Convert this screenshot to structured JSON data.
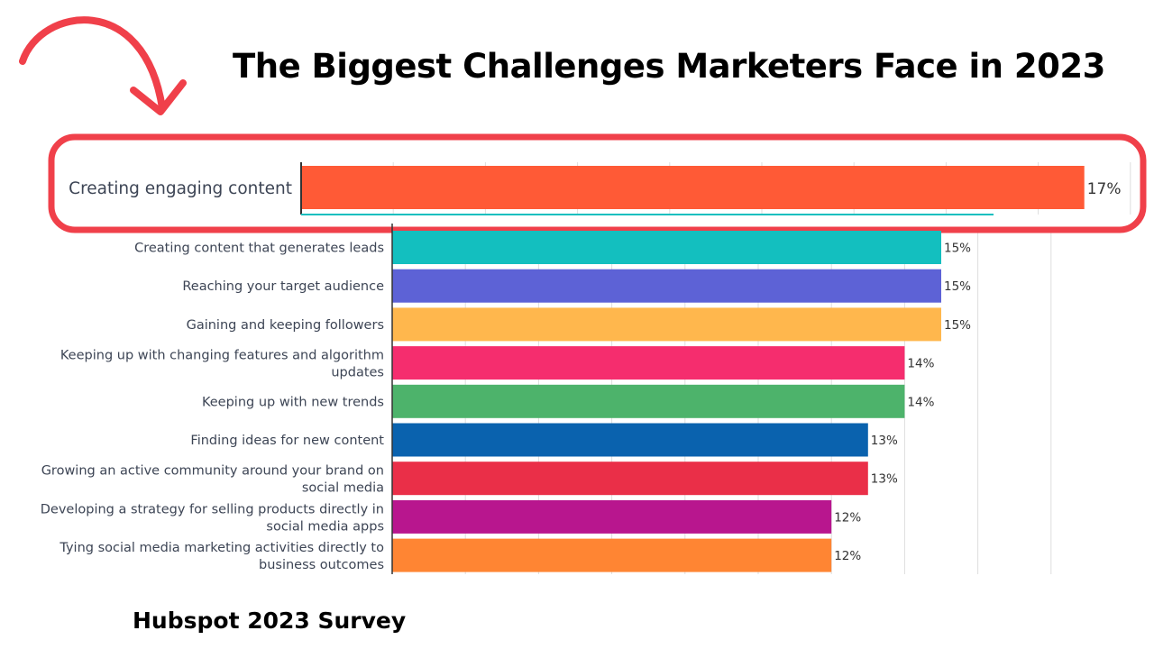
{
  "title": "The Biggest Challenges Marketers Face in 2023",
  "source": "Hubspot 2023 Survey",
  "colors": {
    "highlight": "#f0404a",
    "axis": "#333333",
    "grid": "#dedede"
  },
  "chart_data": {
    "type": "bar",
    "orientation": "horizontal",
    "categories": [
      [
        "Creating engaging content"
      ],
      [
        "Creating content that generates leads"
      ],
      [
        "Reaching your target audience"
      ],
      [
        "Gaining and keeping followers"
      ],
      [
        "Keeping up with changing features and algorithm",
        "updates"
      ],
      [
        "Keeping up with new trends"
      ],
      [
        "Finding ideas for new content"
      ],
      [
        "Growing an active community around your brand on",
        "social media"
      ],
      [
        "Developing a strategy for selling products directly in",
        "social media apps"
      ],
      [
        "Tying social media marketing activities directly to",
        "business outcomes"
      ]
    ],
    "values": [
      17,
      15,
      15,
      15,
      14,
      14,
      13,
      13,
      12,
      12
    ],
    "value_labels": [
      "17%",
      "15%",
      "15%",
      "15%",
      "14%",
      "14%",
      "13%",
      "13%",
      "12%",
      "12%"
    ],
    "bar_colors": [
      "#ff5a36",
      "#13bfbf",
      "#5d62d6",
      "#ffb74d",
      "#f52d6e",
      "#4db36b",
      "#0a62ae",
      "#ea2f48",
      "#b8168e",
      "#ff8533"
    ],
    "highlighted_index": 0,
    "xlim": [
      0,
      18
    ],
    "grid": true,
    "legend": "none"
  }
}
